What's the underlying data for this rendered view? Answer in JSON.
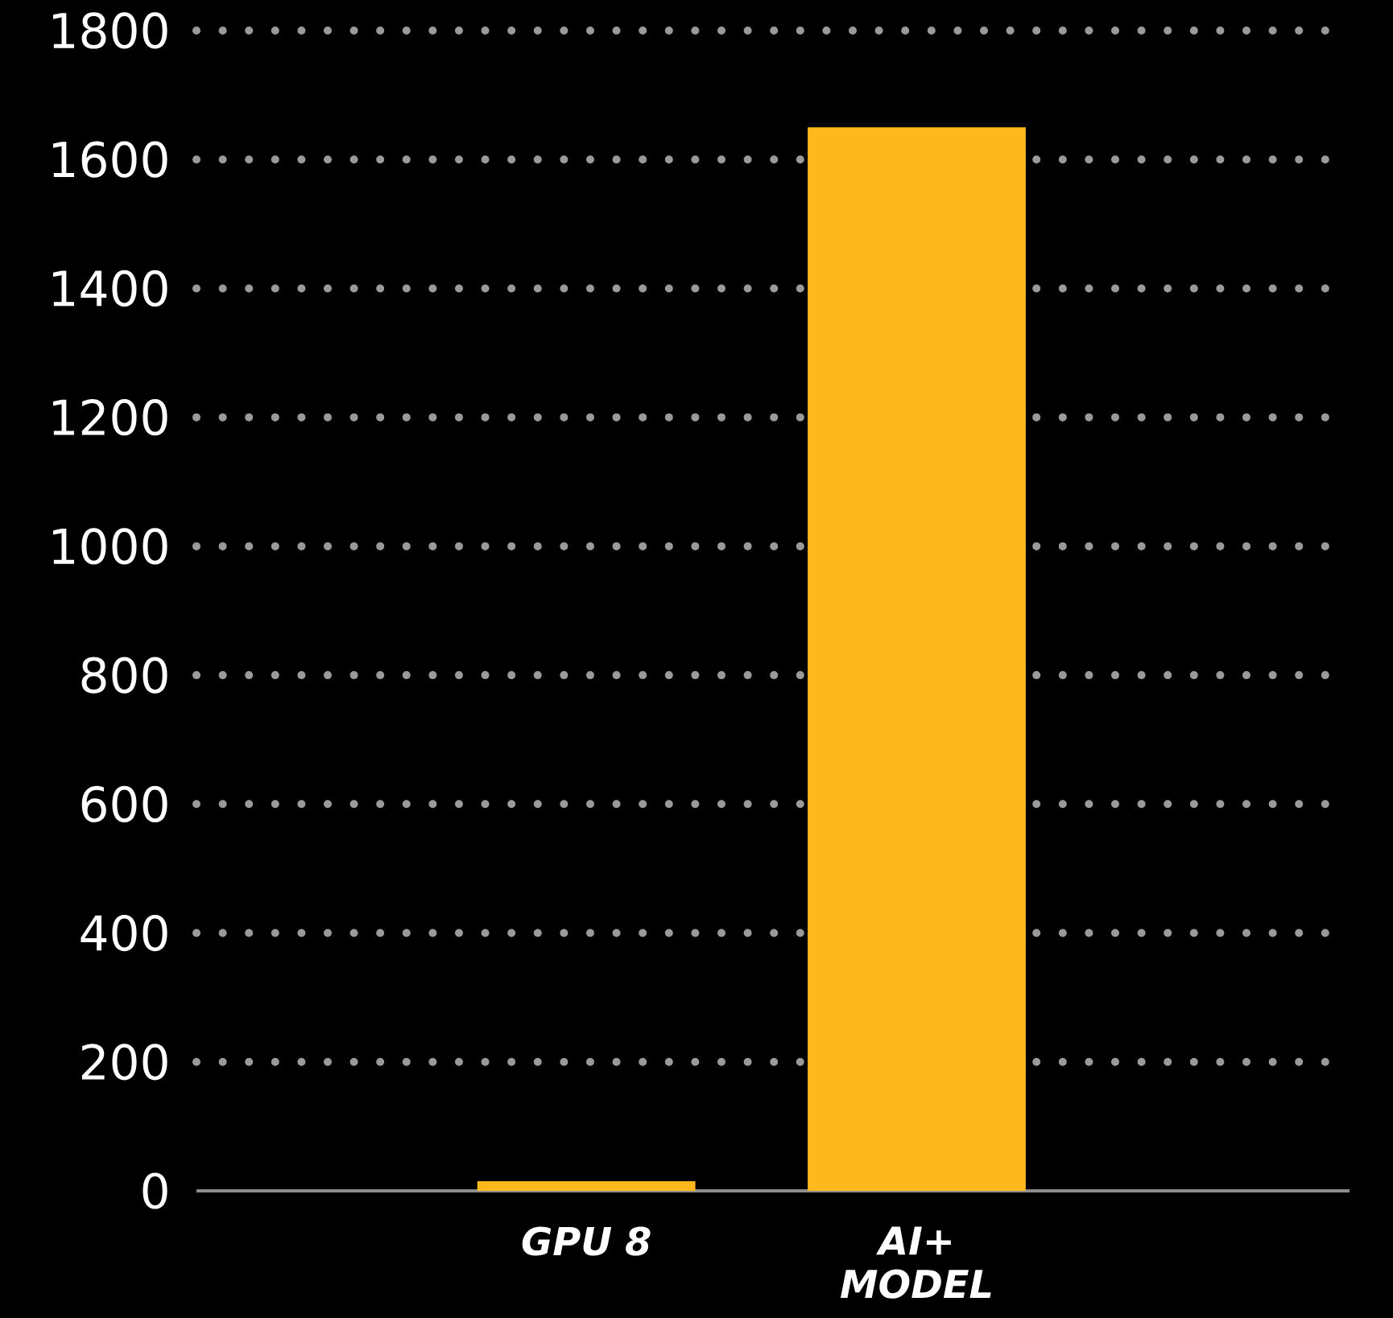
{
  "chart_data": {
    "type": "bar",
    "categories": [
      "GPU 8",
      "AI+ MODEL"
    ],
    "values": [
      15,
      1650
    ],
    "color": "#fdb81e",
    "ylim": [
      0,
      1800
    ],
    "yticks": [
      0,
      200,
      400,
      600,
      800,
      1000,
      1200,
      1400,
      1600,
      1800
    ],
    "grid": "y"
  }
}
